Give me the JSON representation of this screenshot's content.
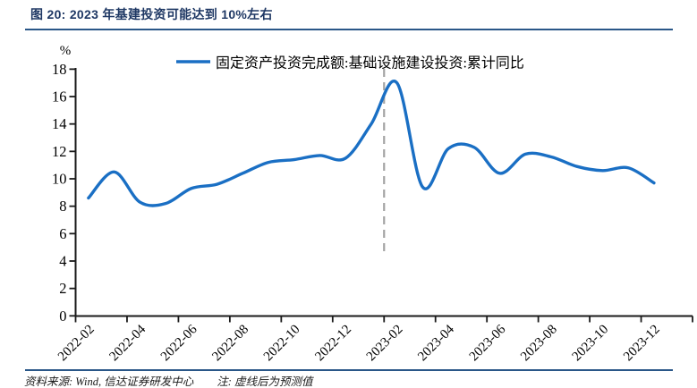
{
  "header": {
    "title": "图 20: 2023 年基建投资可能达到 10%左右"
  },
  "footer": {
    "source": "资料来源: Wind, 信达证券研发中心",
    "note": "注: 虚线后为预测值"
  },
  "chart_data": {
    "type": "line",
    "title": "图 20: 2023 年基建投资可能达到 10%左右",
    "legend_position": "top",
    "line_smooth": true,
    "y_unit": "%",
    "ylim": [
      0,
      18
    ],
    "ytick_step": 2,
    "x": [
      "2022-02",
      "2022-03",
      "2022-04",
      "2022-05",
      "2022-06",
      "2022-07",
      "2022-08",
      "2022-09",
      "2022-10",
      "2022-11",
      "2022-12",
      "2023-01",
      "2023-02",
      "2023-03",
      "2023-04",
      "2023-05",
      "2023-06",
      "2023-07",
      "2023-08",
      "2023-09",
      "2023-10",
      "2023-11",
      "2023-12"
    ],
    "x_tick_labels": [
      "2022-02",
      "2022-04",
      "2022-06",
      "2022-08",
      "2022-10",
      "2022-12",
      "2023-02",
      "2023-04",
      "2023-06",
      "2023-08",
      "2023-10",
      "2023-12"
    ],
    "series": [
      {
        "name": "固定资产投资完成额:基础设施建设投资:累计同比",
        "color": "#1a6fc4",
        "values": [
          8.6,
          10.5,
          8.3,
          8.2,
          9.3,
          9.6,
          10.4,
          11.2,
          11.4,
          11.7,
          11.5,
          14.0,
          17.0,
          9.4,
          12.2,
          12.3,
          10.4,
          11.8,
          11.6,
          10.9,
          10.6,
          10.8,
          9.7
        ]
      }
    ],
    "forecast_divider": {
      "at": "2023-02",
      "meaning": "虚线后为预测值",
      "color": "#a3a3a3"
    },
    "axis_color": "#1a1a1a",
    "peak_value": 17.0,
    "end_value": 9.7
  }
}
